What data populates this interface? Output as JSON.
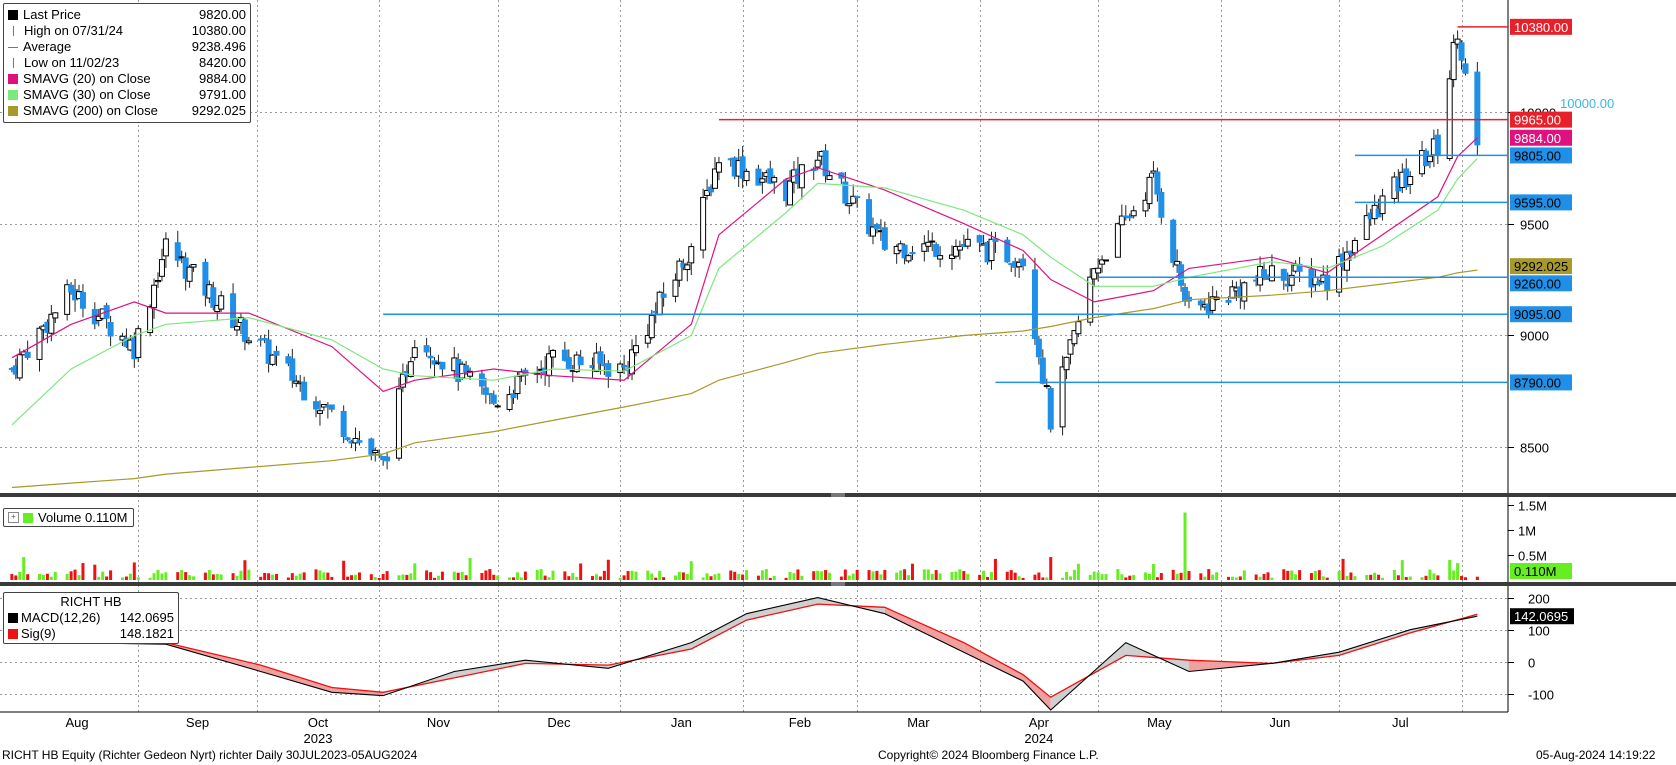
{
  "legend": {
    "rows": [
      {
        "label": "Last Price",
        "value": "9820.00",
        "icon": "square-black",
        "color": "#000000"
      },
      {
        "label": "High on 07/31/24",
        "value": "10380.00",
        "icon": "high-marker",
        "color": "#777777"
      },
      {
        "label": "Average",
        "value": "9238.496",
        "icon": "average-marker",
        "color": "#777777"
      },
      {
        "label": "Low on 11/02/23",
        "value": "8420.00",
        "icon": "low-marker",
        "color": "#777777"
      },
      {
        "label": "SMAVG (20)  on Close",
        "value": "9884.00",
        "icon": "square",
        "color": "#e0117f"
      },
      {
        "label": "SMAVG (30)  on Close",
        "value": "9791.00",
        "icon": "square",
        "color": "#7de87d"
      },
      {
        "label": "SMAVG (200)  on Close",
        "value": "9292.025",
        "icon": "square",
        "color": "#a89a2a"
      }
    ]
  },
  "volume_legend": {
    "label": "Volume",
    "value": "0.110M",
    "color": "#66ee22"
  },
  "macd_legend": {
    "title": "RICHT HB",
    "rows": [
      {
        "label": "MACD(12,26)",
        "value": "142.0695",
        "color": "#000000"
      },
      {
        "label": "Sig(9)",
        "value": "148.1821",
        "color": "#ee1111"
      }
    ]
  },
  "price_axis": {
    "ticks": [
      "10000",
      "9500",
      "9000",
      "8500"
    ]
  },
  "volume_axis": {
    "ticks": [
      "1.5M",
      "1M",
      "0.5M"
    ]
  },
  "macd_axis": {
    "ticks": [
      "200",
      "100",
      "0",
      "-100"
    ]
  },
  "price_tags": [
    {
      "text": "10380.00",
      "bg": "#e8202a",
      "fg": "#ffffff"
    },
    {
      "text": "9965.00",
      "bg": "#e8202a",
      "fg": "#ffffff"
    },
    {
      "text": "9884.00",
      "bg": "#e0117f",
      "fg": "#ffffff"
    },
    {
      "text": "9805.00",
      "bg": "#1f8fe8",
      "fg": "#000000"
    },
    {
      "text": "9595.00",
      "bg": "#1f8fe8",
      "fg": "#000000"
    },
    {
      "text": "9292.025",
      "bg": "#a89a2a",
      "fg": "#000000"
    },
    {
      "text": "9260.00",
      "bg": "#1f8fe8",
      "fg": "#000000"
    },
    {
      "text": "9095.00",
      "bg": "#1f8fe8",
      "fg": "#000000"
    },
    {
      "text": "8790.00",
      "bg": "#1f8fe8",
      "fg": "#000000"
    }
  ],
  "volume_tag": {
    "text": "0.110M",
    "bg": "#66ee22",
    "fg": "#000000"
  },
  "macd_tag": {
    "text": "142.0695",
    "bg": "#000000",
    "fg": "#ffffff"
  },
  "annotation": "10000.00",
  "x_axis": {
    "months": [
      "Aug",
      "Sep",
      "Oct",
      "Nov",
      "Dec",
      "Jan",
      "Feb",
      "Mar",
      "Apr",
      "May",
      "Jun",
      "Jul"
    ],
    "years": [
      "2023",
      "2024"
    ]
  },
  "footer": {
    "left": "RICHT HB Equity (Richter Gedeon Nyrt) richter  Daily 30JUL2023-05AUG2024",
    "center": "Copyright© 2024 Bloomberg Finance L.P.",
    "right": "05-Aug-2024 14:19:22"
  },
  "colors": {
    "up": "#000000",
    "down": "#1f8fe8",
    "sma20": "#e0117f",
    "sma30": "#7de87d",
    "sma200": "#a89a2a",
    "vol_up": "#66ee22",
    "vol_down": "#ee1111",
    "macd": "#000000",
    "signal": "#ee1111"
  },
  "chart_data": {
    "type": "line",
    "title": "RICHT HB Equity (Richter Gedeon Nyrt)",
    "xlabel": "",
    "ylabel": "",
    "x": [
      "2023-07-31",
      "2023-08-15",
      "2023-08-31",
      "2023-09-08",
      "2023-09-29",
      "2023-10-20",
      "2023-11-02",
      "2023-11-10",
      "2023-11-30",
      "2023-12-15",
      "2024-01-02",
      "2024-01-19",
      "2024-01-26",
      "2024-02-12",
      "2024-02-20",
      "2024-03-08",
      "2024-03-28",
      "2024-04-12",
      "2024-04-19",
      "2024-04-30",
      "2024-05-15",
      "2024-05-24",
      "2024-06-14",
      "2024-06-28",
      "2024-07-12",
      "2024-07-26",
      "2024-07-31",
      "2024-08-05"
    ],
    "series": [
      {
        "name": "Last Price",
        "values": [
          8850,
          9200,
          8950,
          9400,
          9000,
          8650,
          8420,
          9000,
          8700,
          8900,
          8850,
          9400,
          9800,
          9650,
          9800,
          9400,
          9400,
          9350,
          8620,
          9300,
          9700,
          9100,
          9280,
          9250,
          9600,
          9850,
          10380,
          9820
        ]
      },
      {
        "name": "SMAVG (20)  on Close",
        "values": [
          8900,
          9050,
          9150,
          9100,
          9100,
          8950,
          8750,
          8800,
          8850,
          8820,
          8800,
          9050,
          9450,
          9700,
          9750,
          9650,
          9500,
          9380,
          9250,
          9150,
          9200,
          9300,
          9350,
          9280,
          9450,
          9620,
          9800,
          9884
        ]
      },
      {
        "name": "SMAVG (30)  on Close",
        "values": [
          8600,
          8850,
          9000,
          9050,
          9080,
          8980,
          8850,
          8820,
          8800,
          8850,
          8840,
          9000,
          9300,
          9550,
          9680,
          9660,
          9560,
          9450,
          9350,
          9220,
          9220,
          9260,
          9330,
          9300,
          9400,
          9560,
          9700,
          9791
        ]
      },
      {
        "name": "SMAVG (200)  on Close",
        "values": [
          8320,
          8340,
          8360,
          8380,
          8410,
          8440,
          8470,
          8520,
          8570,
          8620,
          8680,
          8740,
          8800,
          8880,
          8920,
          8960,
          9000,
          9020,
          9040,
          9080,
          9120,
          9160,
          9180,
          9200,
          9230,
          9260,
          9280,
          9292.025
        ]
      }
    ],
    "ylim": [
      8300,
      10500
    ],
    "summary": {
      "last": 9820.0,
      "high": 10380.0,
      "high_date": "07/31/24",
      "average": 9238.496,
      "low": 8420.0,
      "low_date": "11/02/23"
    },
    "levels": [
      9965.0,
      9805.0,
      9595.0,
      9260.0,
      9095.0,
      8790.0
    ],
    "volume": {
      "last": "0.110M",
      "ylim_millions": [
        0,
        1.6
      ],
      "spike_millions": 1.35
    },
    "macd": {
      "params": "(12,26)",
      "last": 142.0695,
      "signal_params": "(9)",
      "signal_last": 148.1821,
      "x": [
        "2023-07-31",
        "2023-08-15",
        "2023-09-08",
        "2023-10-02",
        "2023-10-20",
        "2023-11-02",
        "2023-11-20",
        "2023-12-08",
        "2023-12-29",
        "2024-01-19",
        "2024-02-02",
        "2024-02-20",
        "2024-03-08",
        "2024-03-28",
        "2024-04-12",
        "2024-04-19",
        "2024-05-08",
        "2024-05-24",
        "2024-06-14",
        "2024-07-01",
        "2024-07-19",
        "2024-08-05"
      ],
      "macd_values": [
        120,
        60,
        55,
        -30,
        -95,
        -105,
        -30,
        5,
        -20,
        60,
        150,
        200,
        150,
        30,
        -60,
        -150,
        60,
        -30,
        -5,
        30,
        100,
        142.0695
      ],
      "signal_values": [
        110,
        70,
        60,
        -10,
        -80,
        -95,
        -50,
        -5,
        -10,
        40,
        130,
        180,
        170,
        60,
        -40,
        -110,
        20,
        5,
        -5,
        20,
        90,
        148.1821
      ],
      "ylim": [
        -150,
        230
      ]
    },
    "grid": true,
    "legend": "top-left"
  }
}
